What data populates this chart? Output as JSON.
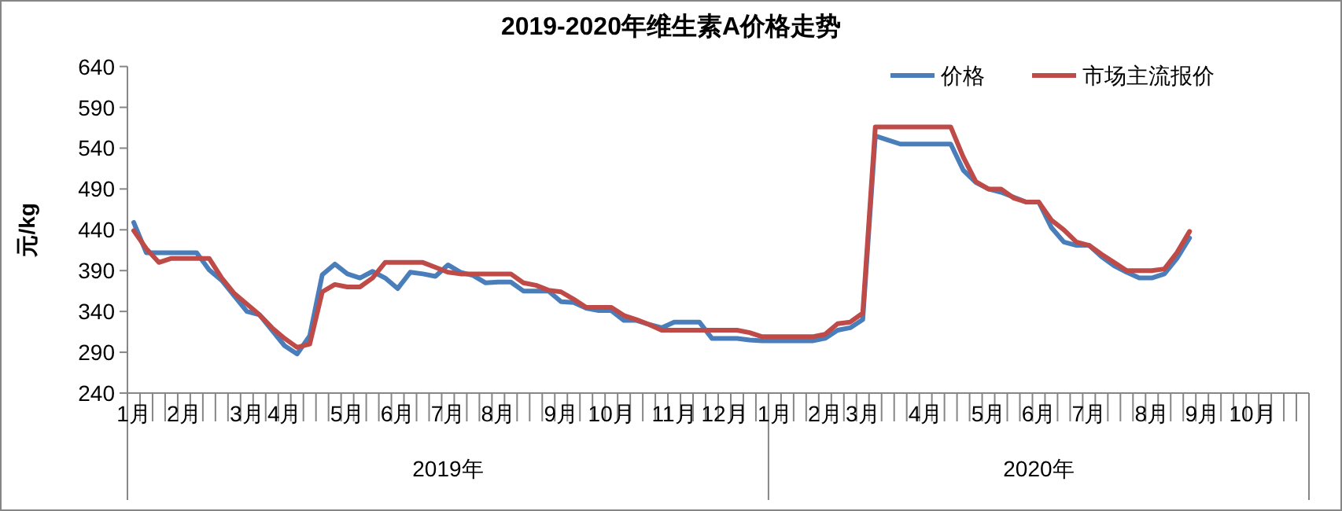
{
  "chart_data": {
    "type": "line",
    "title": "2019-2020年维生素A价格走势",
    "ylabel": "元/kg",
    "categories": [
      "1月",
      null,
      null,
      null,
      "2月",
      null,
      null,
      null,
      null,
      "3月",
      null,
      null,
      "4月",
      null,
      null,
      null,
      null,
      "5月",
      null,
      null,
      null,
      "6月",
      null,
      null,
      null,
      "7月",
      null,
      null,
      null,
      "8月",
      null,
      null,
      null,
      null,
      "9月",
      null,
      null,
      null,
      "10月",
      null,
      null,
      null,
      null,
      "11月",
      null,
      null,
      null,
      "12月",
      null,
      null,
      null,
      "1月",
      null,
      null,
      null,
      "2月",
      null,
      null,
      "3月",
      null,
      null,
      null,
      null,
      "4月",
      null,
      null,
      null,
      null,
      "5月",
      null,
      null,
      null,
      "6月",
      null,
      null,
      null,
      "7月",
      null,
      null,
      null,
      null,
      "8月",
      null,
      null,
      null,
      "9月",
      null,
      null,
      null,
      "10月",
      null,
      null,
      null,
      null
    ],
    "series": [
      {
        "name": "价格",
        "color": "#4a7ebb",
        "values": [
          449,
          412,
          412,
          412,
          412,
          412,
          391,
          378,
          359,
          340,
          336,
          317,
          298,
          288,
          310,
          385,
          398,
          386,
          381,
          389,
          381,
          368,
          388,
          386,
          383,
          397,
          388,
          384,
          375,
          376,
          376,
          365,
          365,
          365,
          352,
          351,
          344,
          341,
          341,
          329,
          329,
          324,
          320,
          327,
          327,
          327,
          307,
          307,
          307,
          305,
          304,
          304,
          304,
          304,
          304,
          307,
          317,
          320,
          330,
          555,
          550,
          545,
          545,
          545,
          545,
          545,
          513,
          498,
          490,
          486,
          480,
          474,
          474,
          443,
          425,
          421,
          421,
          407,
          396,
          388,
          381,
          381,
          386,
          405,
          430,
          null,
          null,
          null,
          null,
          null,
          null,
          null,
          null,
          null
        ]
      },
      {
        "name": "市场主流报价",
        "color": "#be4b48",
        "values": [
          439,
          417,
          400,
          405,
          405,
          405,
          405,
          381,
          362,
          349,
          336,
          320,
          307,
          296,
          300,
          364,
          373,
          370,
          370,
          381,
          400,
          400,
          400,
          400,
          394,
          388,
          386,
          386,
          386,
          386,
          386,
          375,
          372,
          366,
          364,
          355,
          345,
          345,
          345,
          335,
          330,
          324,
          317,
          317,
          317,
          317,
          317,
          317,
          317,
          314,
          309,
          309,
          309,
          309,
          309,
          312,
          325,
          327,
          338,
          566,
          566,
          566,
          566,
          566,
          566,
          566,
          529,
          499,
          490,
          490,
          479,
          474,
          474,
          452,
          440,
          425,
          421,
          410,
          400,
          390,
          390,
          390,
          392,
          412,
          438,
          null,
          null,
          null,
          null,
          null,
          null,
          null,
          null,
          null
        ]
      }
    ],
    "ylim": [
      240,
      640
    ],
    "yticks": [
      240,
      290,
      340,
      390,
      440,
      490,
      540,
      590,
      640
    ],
    "grid": false,
    "legend": "top right",
    "annotations": [
      "2019年",
      "2020年"
    ]
  }
}
